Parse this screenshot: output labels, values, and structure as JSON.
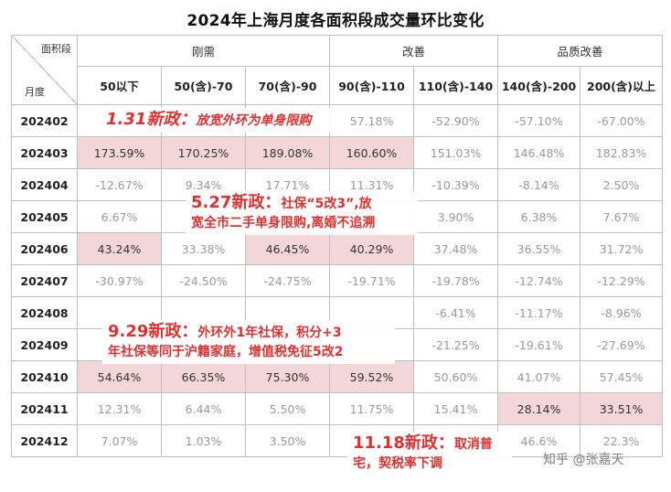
{
  "title": "2024年上海月度各面积段成交量环比变化",
  "header": {
    "corner_top": "面积段",
    "corner_bottom": "月度",
    "groups": [
      "刚需",
      "改善",
      "品质改善"
    ],
    "columns": [
      "50以下",
      "50(含)-70",
      "70(含)-90",
      "90(含)-110",
      "110(含)-140",
      "140(含)-200",
      "200(含)以上"
    ]
  },
  "rows": [
    {
      "month": "202402",
      "cells": [
        "",
        "",
        "",
        "57.18%",
        "-52.90%",
        "-57.10%",
        "-67.00%"
      ]
    },
    {
      "month": "202403",
      "cells": [
        "173.59%",
        "170.25%",
        "189.08%",
        "160.60%",
        "151.03%",
        "146.48%",
        "182.83%"
      ]
    },
    {
      "month": "202404",
      "cells": [
        "-12.67%",
        "9.34%",
        "17.71%",
        "11.31%",
        "-10.39%",
        "-8.14%",
        "2.50%"
      ]
    },
    {
      "month": "202405",
      "cells": [
        "6.67%",
        "",
        "",
        "",
        "3.90%",
        "6.38%",
        "7.67%"
      ]
    },
    {
      "month": "202406",
      "cells": [
        "43.24%",
        "33.38%",
        "46.45%",
        "40.29%",
        "37.48%",
        "36.55%",
        "31.72%"
      ]
    },
    {
      "month": "202407",
      "cells": [
        "-30.97%",
        "-24.50%",
        "-24.75%",
        "-19.71%",
        "-19.78%",
        "-12.74%",
        "-12.29%"
      ]
    },
    {
      "month": "202408",
      "cells": [
        "",
        "",
        "",
        "",
        "-6.41%",
        "-11.17%",
        "-8.96%"
      ]
    },
    {
      "month": "202409",
      "cells": [
        "",
        "",
        "",
        "",
        "-21.25%",
        "-19.61%",
        "-27.69%"
      ]
    },
    {
      "month": "202410",
      "cells": [
        "54.64%",
        "66.35%",
        "75.30%",
        "59.52%",
        "50.60%",
        "41.07%",
        "57.45%"
      ]
    },
    {
      "month": "202411",
      "cells": [
        "12.31%",
        "6.44%",
        "5.50%",
        "11.75%",
        "15.41%",
        "28.14%",
        "33.51%"
      ]
    },
    {
      "month": "202412",
      "cells": [
        "7.07%",
        "1.03%",
        "3.50%",
        "",
        "",
        "46.6%",
        "22.3%"
      ]
    }
  ],
  "highlight_cells": {
    "202403": [
      0,
      1,
      2,
      3
    ],
    "202406": [
      0,
      2,
      3
    ],
    "202410": [
      0,
      1,
      2,
      3
    ],
    "202411": [
      5,
      6
    ]
  },
  "callouts": {
    "c1": {
      "head": "1.31新政：",
      "body": "放宽外环为单身限购"
    },
    "c2": {
      "head": "5.27新政：",
      "line1": "社保“5改3”,放",
      "line2": "宽全市二手单身限购,离婚不追溯"
    },
    "c3": {
      "head": "9.29新政：",
      "line1": "外环外1年社保，积分+3",
      "line2": "年社保等同于沪籍家庭，增值税免征5改2"
    },
    "c4": {
      "head": "11.18新政：",
      "line1": "取消普",
      "line2": "宅，契税率下调"
    }
  },
  "watermark": "知乎 @张嘉天",
  "colors": {
    "highlight": "#f3d7d8",
    "callout_text": "#e03030",
    "muted_text": "#9a9a9a"
  }
}
